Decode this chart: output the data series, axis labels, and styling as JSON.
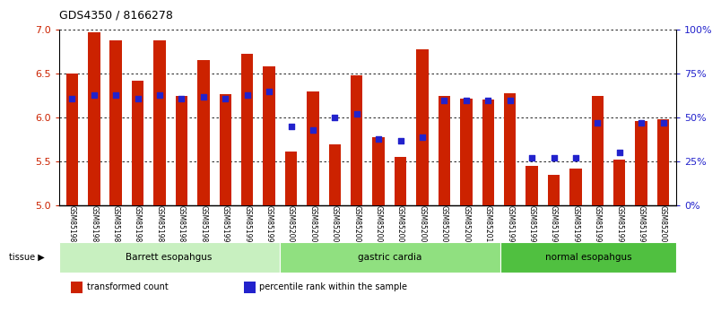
{
  "title": "GDS4350 / 8166278",
  "samples": [
    "GSM851983",
    "GSM851984",
    "GSM851985",
    "GSM851986",
    "GSM851987",
    "GSM851988",
    "GSM851989",
    "GSM851990",
    "GSM851991",
    "GSM851992",
    "GSM852001",
    "GSM852002",
    "GSM852003",
    "GSM852004",
    "GSM852005",
    "GSM852006",
    "GSM852007",
    "GSM852008",
    "GSM852009",
    "GSM852010",
    "GSM851993",
    "GSM851994",
    "GSM851995",
    "GSM851996",
    "GSM851997",
    "GSM851998",
    "GSM851999",
    "GSM852000"
  ],
  "bar_heights": [
    6.5,
    6.97,
    6.88,
    6.42,
    6.88,
    6.25,
    6.65,
    6.27,
    6.72,
    6.58,
    5.62,
    6.3,
    5.7,
    6.48,
    5.78,
    5.55,
    6.78,
    6.25,
    6.22,
    6.21,
    6.28,
    5.45,
    5.35,
    5.42,
    6.25,
    5.52,
    5.96,
    5.98
  ],
  "percentile_ranks": [
    61,
    63,
    63,
    61,
    63,
    61,
    62,
    61,
    63,
    65,
    45,
    43,
    50,
    52,
    38,
    37,
    39,
    60,
    60,
    60,
    60,
    27,
    27,
    27,
    47,
    30,
    47,
    47
  ],
  "groups": [
    {
      "label": "Barrett esopahgus",
      "start": 0,
      "end": 10,
      "color": "#c8f0c0"
    },
    {
      "label": "gastric cardia",
      "start": 10,
      "end": 20,
      "color": "#90e080"
    },
    {
      "label": "normal esopahgus",
      "start": 20,
      "end": 28,
      "color": "#50c040"
    }
  ],
  "ylim_left": [
    5.0,
    7.0
  ],
  "ylim_right": [
    0,
    100
  ],
  "yticks_left": [
    5.0,
    5.5,
    6.0,
    6.5,
    7.0
  ],
  "yticks_right": [
    0,
    25,
    50,
    75,
    100
  ],
  "ytick_labels_right": [
    "0%",
    "25%",
    "50%",
    "75%",
    "100%"
  ],
  "bar_color": "#cc2200",
  "dot_color": "#2222cc",
  "bar_width": 0.55,
  "legend_items": [
    {
      "label": "transformed count",
      "color": "#cc2200"
    },
    {
      "label": "percentile rank within the sample",
      "color": "#2222cc"
    }
  ]
}
